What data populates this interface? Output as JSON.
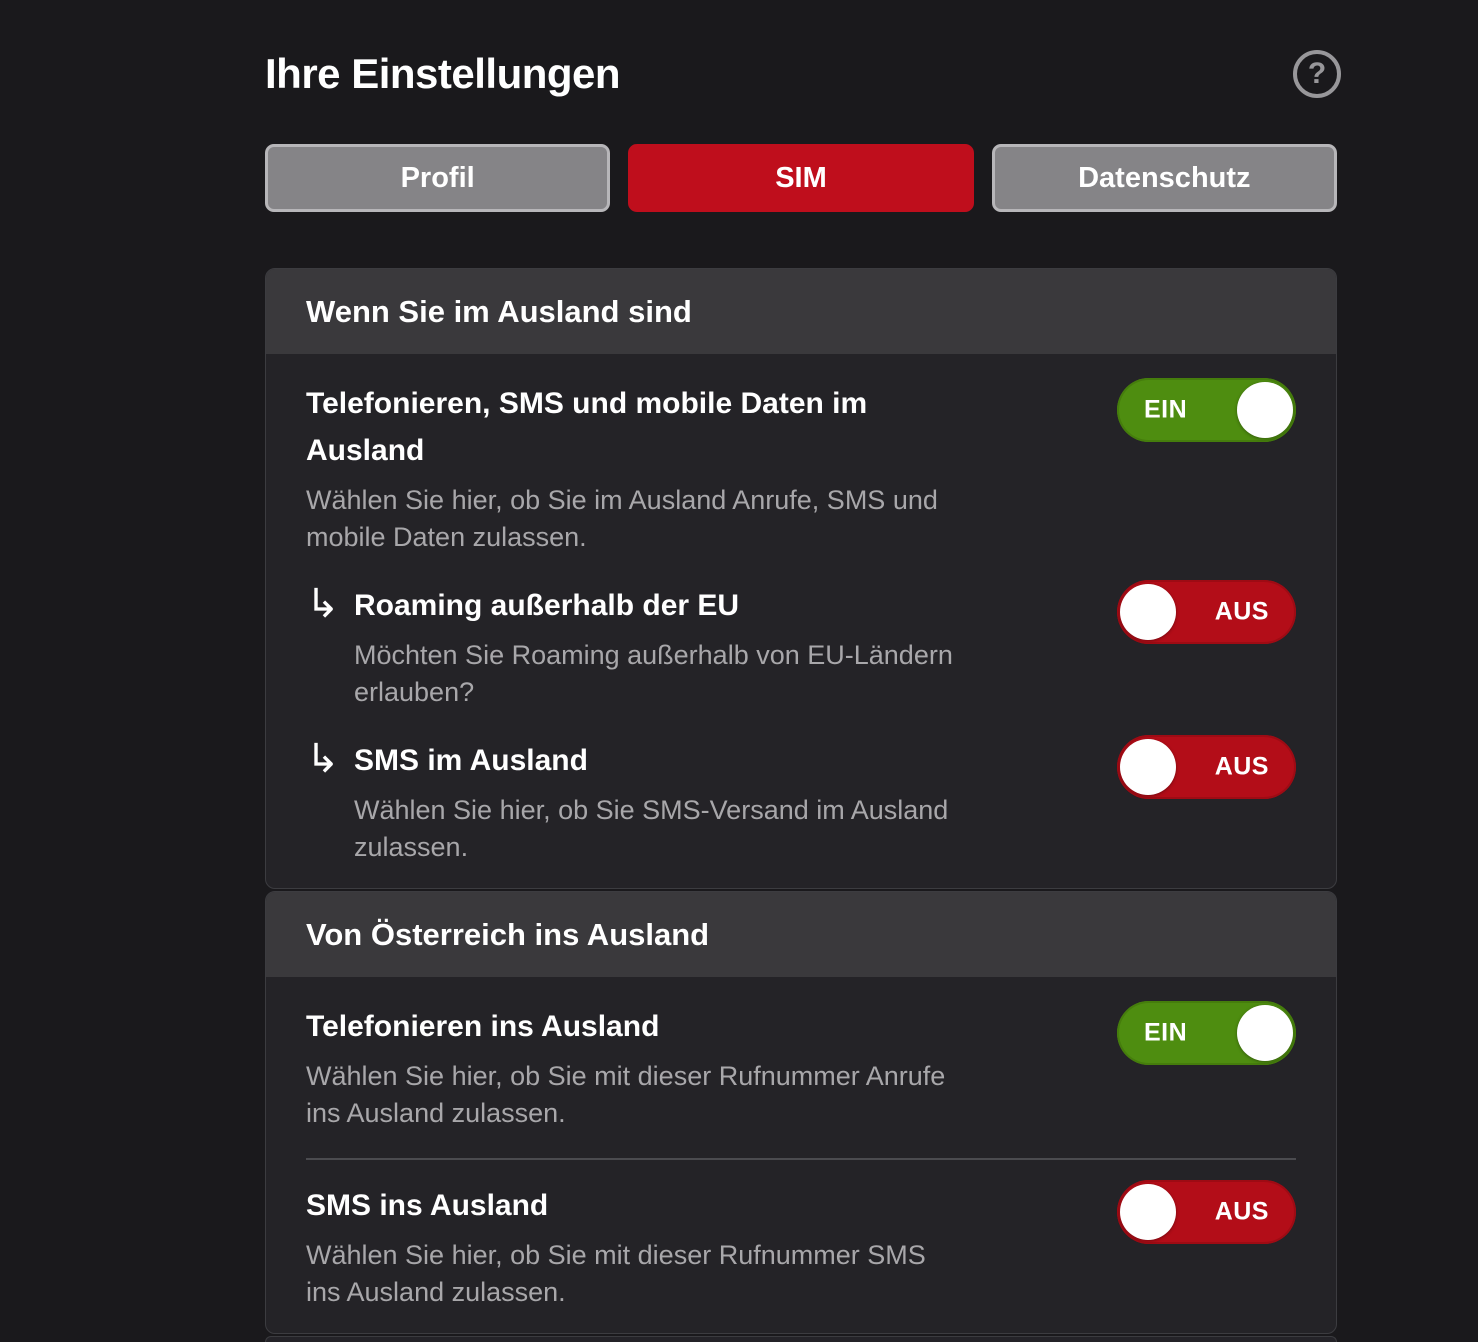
{
  "page": {
    "title": "Ihre Einstellungen",
    "help_label": "?"
  },
  "tabs": [
    {
      "label": "Profil",
      "active": false
    },
    {
      "label": "SIM",
      "active": true
    },
    {
      "label": "Datenschutz",
      "active": false
    }
  ],
  "icons": {
    "help": "question-mark-circle-icon",
    "sub_item_arrow": "↳"
  },
  "colors": {
    "background": "#1a191c",
    "card_body": "#242327",
    "card_header": "#3a393c",
    "accent_red": "#bf0e1c",
    "toggle_on_green": "#4e8d10",
    "toggle_off_red": "#b30d18",
    "tab_inactive_gray": "#858487",
    "description_gray": "#a8a7aa"
  },
  "sections": [
    {
      "header": "Wenn Sie im Ausland sind",
      "rows": [
        {
          "title_lines": [
            "Telefonieren, SMS und mobile Daten im",
            "Ausland"
          ],
          "description_lines": [
            "Wählen Sie hier, ob Sie im Ausland Anrufe, SMS und",
            "mobile Daten zulassen."
          ],
          "toggle_label": "EIN",
          "toggle_on": true,
          "sub_item": false
        },
        {
          "title_lines": [
            "Roaming außerhalb der EU"
          ],
          "description_lines": [
            "Möchten Sie Roaming außerhalb von EU-Ländern",
            "erlauben?"
          ],
          "toggle_label": "AUS",
          "toggle_on": false,
          "sub_item": true
        },
        {
          "title_lines": [
            "SMS im Ausland"
          ],
          "description_lines": [
            "Wählen Sie hier, ob Sie SMS-Versand im Ausland",
            "zulassen."
          ],
          "toggle_label": "AUS",
          "toggle_on": false,
          "sub_item": true
        }
      ]
    },
    {
      "header": "Von Österreich ins Ausland",
      "rows": [
        {
          "title_lines": [
            "Telefonieren ins Ausland"
          ],
          "description_lines": [
            "Wählen Sie hier, ob Sie mit dieser Rufnummer Anrufe",
            "ins Ausland zulassen."
          ],
          "toggle_label": "EIN",
          "toggle_on": true,
          "sub_item": false
        },
        {
          "title_lines": [
            "SMS ins Ausland"
          ],
          "description_lines": [
            "Wählen Sie hier, ob Sie mit dieser Rufnummer SMS",
            "ins Ausland zulassen."
          ],
          "toggle_label": "AUS",
          "toggle_on": false,
          "sub_item": false
        }
      ]
    }
  ]
}
